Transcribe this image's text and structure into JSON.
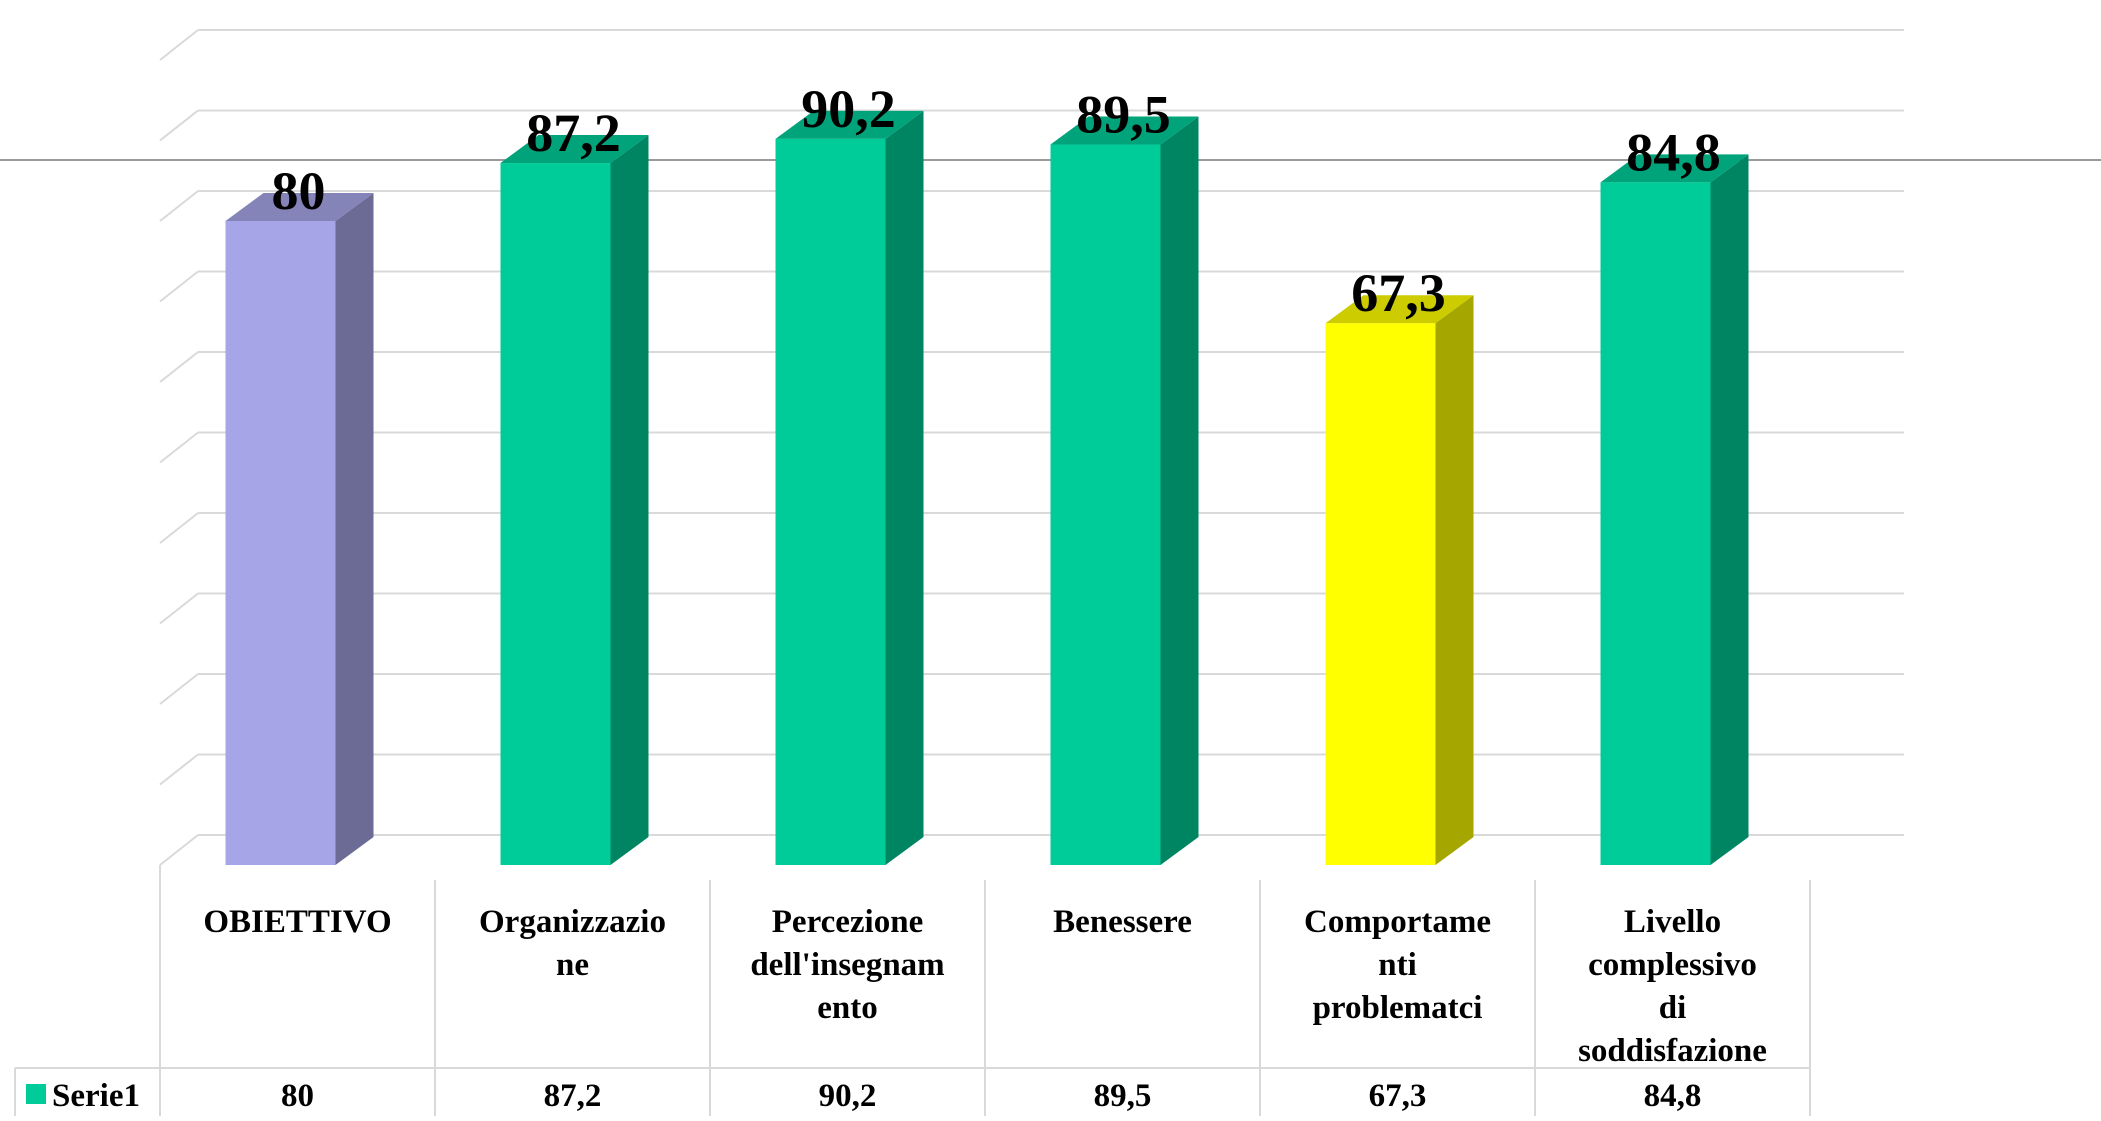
{
  "chart_data": {
    "type": "bar",
    "categories": [
      [
        "OBIETTIVO"
      ],
      [
        "Organizzazio",
        "ne"
      ],
      [
        "Percezione",
        "dell'insegnam",
        "ento"
      ],
      [
        "Benessere"
      ],
      [
        "Comportame",
        "nti",
        "problematci"
      ],
      [
        "Livello",
        "complessivo",
        "di",
        "soddisfazione"
      ]
    ],
    "series": [
      {
        "name": "Serie1",
        "values": [
          80,
          87.2,
          90.2,
          89.5,
          67.3,
          84.8
        ]
      }
    ],
    "value_labels": [
      "80",
      "87,2",
      "90,2",
      "89,5",
      "67,3",
      "84,8"
    ],
    "ylim": [
      0,
      100
    ],
    "grid": true,
    "bar_style": "3d-column",
    "data_table": true,
    "bar_colors": [
      "#A5A5E7",
      "#00CC99",
      "#00CC99",
      "#00CC99",
      "#FFFF00",
      "#00CC99"
    ],
    "bar_side_colors": [
      "#6B6B96",
      "#008563",
      "#008563",
      "#008563",
      "#A6A600",
      "#008563"
    ],
    "bar_top_colors": [
      "#8484B8",
      "#00A37A",
      "#00A37A",
      "#00A37A",
      "#CCCC00",
      "#00A37A"
    ],
    "legend_color": "#00CC99",
    "legend_position": "left of data table"
  }
}
